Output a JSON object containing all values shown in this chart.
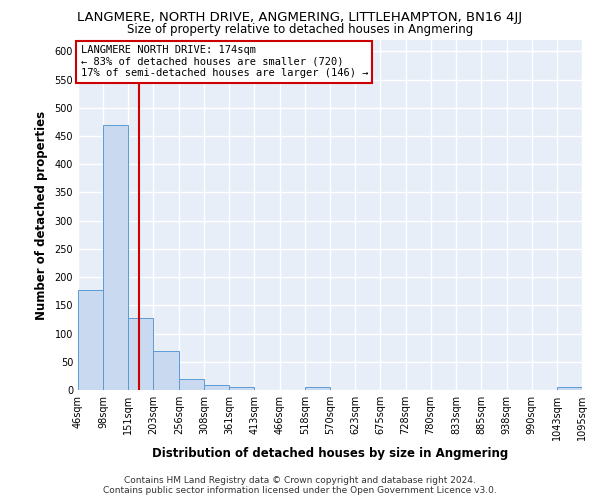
{
  "title": "LANGMERE, NORTH DRIVE, ANGMERING, LITTLEHAMPTON, BN16 4JJ",
  "subtitle": "Size of property relative to detached houses in Angmering",
  "xlabel": "Distribution of detached houses by size in Angmering",
  "ylabel": "Number of detached properties",
  "bin_edges": [
    46,
    98,
    151,
    203,
    256,
    308,
    361,
    413,
    466,
    518,
    570,
    623,
    675,
    728,
    780,
    833,
    885,
    938,
    990,
    1043,
    1095
  ],
  "bin_labels": [
    "46sqm",
    "98sqm",
    "151sqm",
    "203sqm",
    "256sqm",
    "308sqm",
    "361sqm",
    "413sqm",
    "466sqm",
    "518sqm",
    "570sqm",
    "623sqm",
    "675sqm",
    "728sqm",
    "780sqm",
    "833sqm",
    "885sqm",
    "938sqm",
    "990sqm",
    "1043sqm",
    "1095sqm"
  ],
  "counts": [
    178,
    469,
    128,
    69,
    20,
    8,
    5,
    0,
    0,
    5,
    0,
    0,
    0,
    0,
    0,
    0,
    0,
    0,
    0,
    5
  ],
  "bar_color": "#c9d9f0",
  "bar_edge_color": "#5b9bd5",
  "vline_x": 174,
  "vline_color": "#cc0000",
  "annotation_title": "LANGMERE NORTH DRIVE: 174sqm",
  "annotation_line1": "← 83% of detached houses are smaller (720)",
  "annotation_line2": "17% of semi-detached houses are larger (146) →",
  "annotation_box_color": "#ffffff",
  "annotation_box_edge": "#cc0000",
  "ylim": [
    0,
    620
  ],
  "yticks": [
    0,
    50,
    100,
    150,
    200,
    250,
    300,
    350,
    400,
    450,
    500,
    550,
    600
  ],
  "footer1": "Contains HM Land Registry data © Crown copyright and database right 2024.",
  "footer2": "Contains public sector information licensed under the Open Government Licence v3.0.",
  "background_color": "#ffffff",
  "plot_bg_color": "#e8eef8",
  "grid_color": "#ffffff",
  "title_fontsize": 9.5,
  "subtitle_fontsize": 8.5,
  "axis_label_fontsize": 8.5,
  "tick_fontsize": 7,
  "footer_fontsize": 6.5,
  "annotation_fontsize": 7.5
}
